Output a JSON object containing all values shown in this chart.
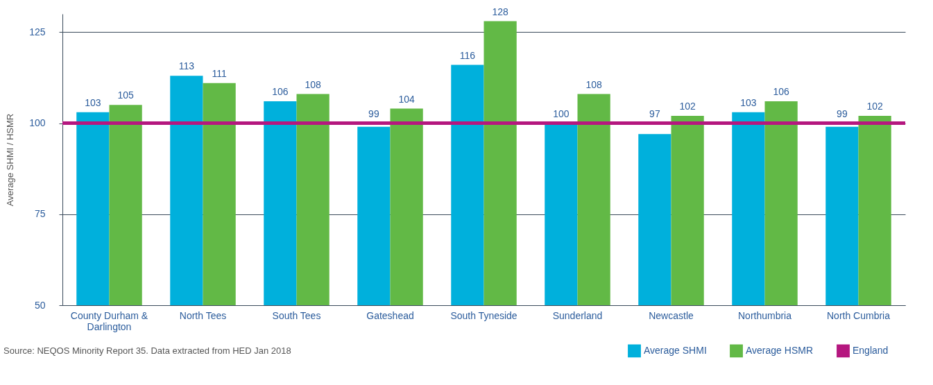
{
  "chart_data": {
    "type": "bar",
    "ylabel": "Average SHMI / HSMR",
    "categories": [
      "County Durham & Darlington",
      "North Tees",
      "South Tees",
      "Gateshead",
      "South Tyneside",
      "Sunderland",
      "Newcastle",
      "Northumbria",
      "North Cumbria"
    ],
    "series": [
      {
        "name": "Average SHMI",
        "color": "#00b0dc",
        "values": [
          103,
          113,
          106,
          99,
          116,
          100,
          97,
          103,
          99
        ]
      },
      {
        "name": "Average HSMR",
        "color": "#62b946",
        "values": [
          105,
          111,
          108,
          104,
          128,
          108,
          102,
          106,
          102
        ]
      }
    ],
    "ref_lines": [
      {
        "axis": "y",
        "value": 100,
        "label": "England",
        "color": "#b5177f"
      }
    ],
    "ylim": [
      50,
      130
    ],
    "yticks": [
      50,
      75,
      100,
      125
    ],
    "grid": "y",
    "data_labels": true,
    "legend": "bottom right",
    "annotations": [
      "Source: NEQOS Minority Report 35. Data extracted from HED Jan 2018"
    ]
  }
}
